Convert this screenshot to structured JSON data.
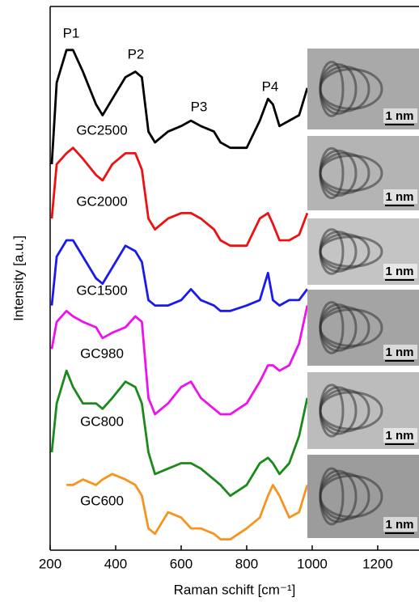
{
  "chart_data": {
    "type": "line",
    "xlabel": "Raman schift [cm⁻¹]",
    "ylabel": "Intensity [a.u.]",
    "x": [
      205,
      220,
      250,
      270,
      300,
      340,
      360,
      390,
      430,
      460,
      480,
      500,
      520,
      560,
      600,
      630,
      660,
      700,
      720,
      750,
      800,
      840,
      865,
      880,
      900,
      930,
      960,
      985
    ],
    "series": [
      {
        "name": "GC2500",
        "color": "#000000",
        "values": [
          71,
          86,
          92,
          92,
          88,
          82,
          80,
          83,
          87,
          88,
          87,
          77,
          75,
          77,
          78,
          79,
          78,
          77,
          75,
          74,
          74,
          79,
          83,
          82,
          78,
          79,
          80,
          85
        ]
      },
      {
        "name": "GC2000",
        "color": "#ee1111",
        "values": [
          61,
          71,
          73,
          74,
          72,
          69,
          68,
          71,
          73,
          73,
          70,
          61,
          59,
          61,
          62,
          62,
          61,
          59,
          57,
          56,
          56,
          61,
          62,
          60,
          57,
          57,
          58,
          62
        ]
      },
      {
        "name": "GC1500",
        "color": "#1a1aee",
        "values": [
          45,
          54,
          57,
          57,
          54,
          50,
          49,
          52,
          56,
          55,
          53,
          46,
          45,
          45,
          46,
          48,
          46,
          45,
          44,
          44,
          45,
          46,
          51,
          46,
          45,
          46,
          46,
          48
        ]
      },
      {
        "name": "GC980",
        "color": "#ee11ee",
        "values": [
          37,
          42,
          44,
          43,
          42,
          41,
          39,
          40,
          41,
          43,
          42,
          28,
          25,
          27,
          30,
          31,
          28,
          26,
          25,
          25,
          27,
          31,
          34,
          34,
          33,
          34,
          38,
          45
        ]
      },
      {
        "name": "GC800",
        "color": "#1a8a1a",
        "values": [
          18,
          27,
          33,
          30,
          27,
          27,
          26,
          28,
          31,
          30,
          27,
          18,
          14,
          15,
          16,
          16,
          15,
          13,
          12,
          10,
          12,
          16,
          17,
          16,
          14,
          16,
          21,
          28
        ]
      },
      {
        "name": "GC600",
        "color": "#f7941d",
        "values": [
          null,
          null,
          12,
          12,
          13,
          12,
          13,
          14,
          13,
          12,
          10,
          4,
          3,
          7,
          6,
          4,
          4,
          3,
          2,
          2,
          4,
          6,
          10,
          12,
          10,
          6,
          7,
          12
        ]
      }
    ],
    "peak_labels": [
      "P1",
      "P2",
      "P3",
      "P4"
    ],
    "scale_bars": [
      "1 nm",
      "1 nm",
      "1 nm",
      "1 nm",
      "1 nm",
      "1 nm"
    ],
    "xlim": [
      200,
      1330
    ],
    "ylim": [
      0,
      100
    ],
    "xticks": [
      200,
      400,
      600,
      800,
      1000,
      1200
    ]
  }
}
